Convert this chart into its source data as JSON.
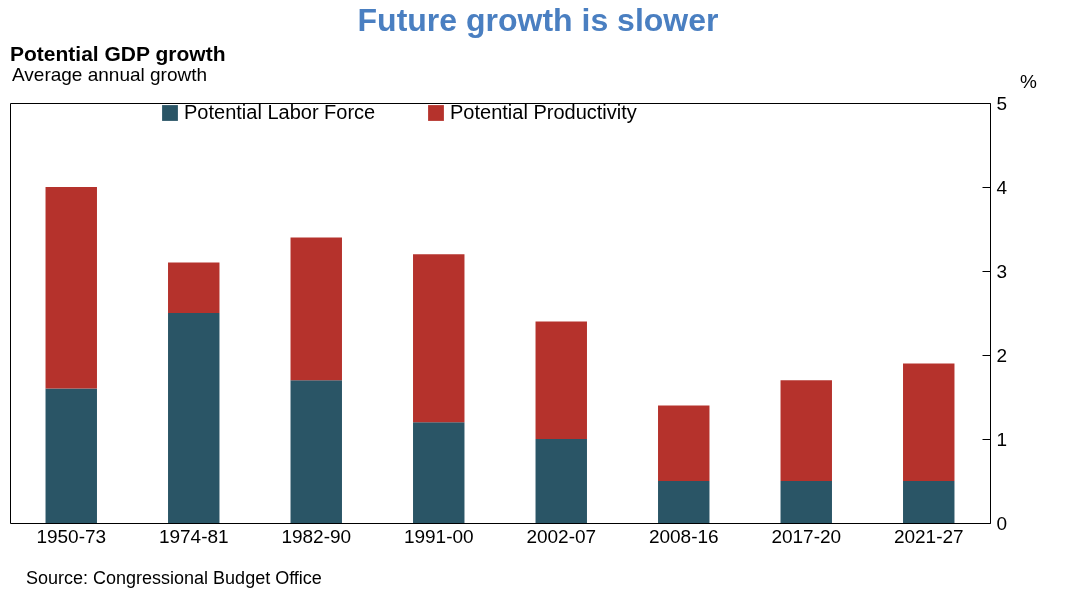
{
  "chart_data": {
    "type": "bar",
    "title": "Future growth is slower",
    "subtitle": "Potential GDP growth",
    "ylabel": "%",
    "annotations": [
      "Average annual growth",
      "Source: Congressional Budget Office"
    ],
    "categories": [
      "1950-73",
      "1974-81",
      "1982-90",
      "1991-00",
      "2002-07",
      "2008-16",
      "2017-20",
      "2021-27"
    ],
    "stacked": true,
    "series": [
      {
        "name": "Potential Labor Force",
        "color": "#2a5566",
        "values": [
          1.6,
          2.5,
          1.7,
          1.2,
          1.0,
          0.5,
          0.5,
          0.5
        ]
      },
      {
        "name": "Potential Productivity",
        "color": "#b5322c",
        "values": [
          2.4,
          0.6,
          1.7,
          2.0,
          1.4,
          0.9,
          1.2,
          1.4
        ]
      }
    ],
    "ylim": [
      0,
      5
    ],
    "yticks": [
      0,
      1,
      2,
      3,
      4,
      5
    ],
    "grid": false,
    "legend": "top"
  }
}
